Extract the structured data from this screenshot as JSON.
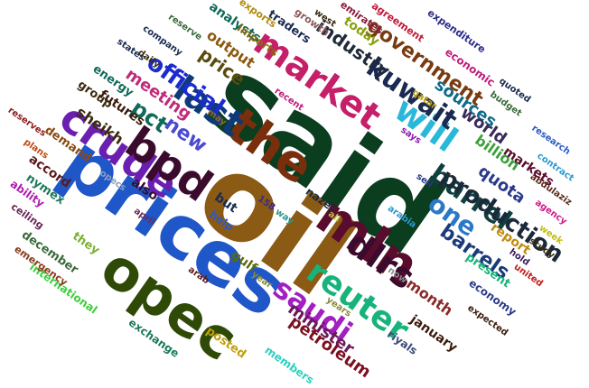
{
  "words": [
    {
      "text": "said",
      "color": "#0b3d1f"
    },
    {
      "text": "oil",
      "color": "#8b5a14"
    },
    {
      "text": "prices",
      "color": "#1f56c8"
    },
    {
      "text": "opec",
      "color": "#2f4a06"
    },
    {
      "text": "mln",
      "color": "#5a0c2c"
    },
    {
      "text": "the",
      "color": "#7a2e0c"
    },
    {
      "text": "crude",
      "color": "#6b1fb0"
    },
    {
      "text": "bpd",
      "color": "#3a0b2c"
    },
    {
      "text": "market",
      "color": "#c51f6a"
    },
    {
      "text": "last",
      "color": "#0f3a7a"
    },
    {
      "text": "will",
      "color": "#2ab8d8"
    },
    {
      "text": "reuter",
      "color": "#17b37a"
    },
    {
      "text": "dlrs",
      "color": "#3a0b2c"
    },
    {
      "text": "kuwait",
      "color": "#1a2a50"
    },
    {
      "text": "saudi",
      "color": "#a21fc0"
    },
    {
      "text": "barrel",
      "color": "#0f4040"
    },
    {
      "text": "one",
      "color": "#2a78c8"
    },
    {
      "text": "production",
      "color": "#1a2a3a"
    },
    {
      "text": "official",
      "color": "#1a2bd0"
    },
    {
      "text": "government",
      "color": "#7a3a10"
    },
    {
      "text": "pct",
      "color": "#0f6a5a"
    },
    {
      "text": "new",
      "color": "#4a4ad0"
    },
    {
      "text": "price",
      "color": "#5a4a10"
    },
    {
      "text": "industry",
      "color": "#1f2a3a"
    },
    {
      "text": "barrels",
      "color": "#1a3a7a"
    },
    {
      "text": "minister",
      "color": "#6a1a5a"
    },
    {
      "text": "petroleum",
      "color": "#7a1020"
    },
    {
      "text": "sources",
      "color": "#0f6a8a"
    },
    {
      "text": "world",
      "color": "#3a2a5a"
    },
    {
      "text": "sheikh",
      "color": "#3a2a10"
    },
    {
      "text": "meeting",
      "color": "#c02a7a"
    },
    {
      "text": "month",
      "color": "#8a2a2a"
    },
    {
      "text": "quota",
      "color": "#2a3a8a"
    },
    {
      "text": "billion",
      "color": "#3aa03a"
    },
    {
      "text": "markets",
      "color": "#5a0c2c"
    },
    {
      "text": "report",
      "color": "#c08a10"
    },
    {
      "text": "january",
      "color": "#3a1a0a"
    },
    {
      "text": "output",
      "color": "#8a5a10"
    },
    {
      "text": "analysts",
      "color": "#0f6a5a"
    },
    {
      "text": "futures",
      "color": "#3a1a0a"
    },
    {
      "text": "today",
      "color": "#8aa010"
    },
    {
      "text": "also",
      "color": "#3a0b2c"
    },
    {
      "text": "gulf",
      "color": "#5a6a10"
    },
    {
      "text": "but",
      "color": "#1a2a50"
    },
    {
      "text": "help",
      "color": "#2a5ac8"
    },
    {
      "text": "nazer",
      "color": "#1a2a3a"
    },
    {
      "text": "present",
      "color": "#17b37a"
    },
    {
      "text": "economy",
      "color": "#2a3a8a"
    },
    {
      "text": "december",
      "color": "#3a6a3a"
    },
    {
      "text": "they",
      "color": "#7ab030"
    },
    {
      "text": "international",
      "color": "#3ad03a"
    },
    {
      "text": "exchange",
      "color": "#1a7a5a"
    },
    {
      "text": "posted",
      "color": "#c0a010"
    },
    {
      "text": "members",
      "color": "#2ad0c0"
    },
    {
      "text": "riyals",
      "color": "#3a4a7a"
    },
    {
      "text": "accord",
      "color": "#5a1a1a"
    },
    {
      "text": "nymex",
      "color": "#1a7a5a"
    },
    {
      "text": "ability",
      "color": "#b01ab0"
    },
    {
      "text": "ceiling",
      "color": "#6a2a5a"
    },
    {
      "text": "emergency",
      "color": "#8a3a1a"
    },
    {
      "text": "demand",
      "color": "#8a4a10"
    },
    {
      "text": "group",
      "color": "#3a2a10"
    },
    {
      "text": "energy",
      "color": "#0f6a5a"
    },
    {
      "text": "traders",
      "color": "#1a2a50"
    },
    {
      "text": "imports",
      "color": "#8a6a10"
    },
    {
      "text": "exports",
      "color": "#b08a10"
    },
    {
      "text": "growth",
      "color": "#8a5a5a"
    },
    {
      "text": "west",
      "color": "#3a2a10"
    },
    {
      "text": "emirates",
      "color": "#8a1a3a"
    },
    {
      "text": "agreement",
      "color": "#c01a3a"
    },
    {
      "text": "expenditure",
      "color": "#2a2a8a"
    },
    {
      "text": "economic",
      "color": "#c01a7a"
    },
    {
      "text": "budget",
      "color": "#3a6a3a"
    },
    {
      "text": "quoted",
      "color": "#1a2a50"
    },
    {
      "text": "research",
      "color": "#2a5ac8"
    },
    {
      "text": "contract",
      "color": "#2a9ad0"
    },
    {
      "text": "abdulaziz",
      "color": "#5a2a1a"
    },
    {
      "text": "agency",
      "color": "#d01a8a"
    },
    {
      "text": "week",
      "color": "#c0c010"
    },
    {
      "text": "study",
      "color": "#3a2a10"
    },
    {
      "text": "hold",
      "color": "#3a1a5a"
    },
    {
      "text": "united",
      "color": "#c01a1a"
    },
    {
      "text": "expected",
      "color": "#3a1a0a"
    },
    {
      "text": "years",
      "color": "#8a8a3a"
    },
    {
      "text": "sell",
      "color": "#2a3a8a"
    },
    {
      "text": "says",
      "color": "#8a1ab0"
    },
    {
      "text": "qatar",
      "color": "#c0a010"
    },
    {
      "text": "arabia",
      "color": "#2a9ad0"
    },
    {
      "text": "now",
      "color": "#8a8a8a"
    },
    {
      "text": "year",
      "color": "#8a8a3a"
    },
    {
      "text": "arab",
      "color": "#5a1a1a"
    },
    {
      "text": "ali",
      "color": "#c0c040"
    },
    {
      "text": "158",
      "color": "#3a2a8a"
    },
    {
      "text": "way",
      "color": "#2a9a8a"
    },
    {
      "text": "april",
      "color": "#6a2a5a"
    },
    {
      "text": "may",
      "color": "#8a6a3a"
    },
    {
      "text": "recent",
      "color": "#c01a7a"
    },
    {
      "text": "plans",
      "color": "#c04a10"
    },
    {
      "text": "reserves",
      "color": "#8a1a1a"
    },
    {
      "text": "opecs",
      "color": "#8aa0c0"
    },
    {
      "text": "states",
      "color": "#1a2a50"
    },
    {
      "text": "company",
      "color": "#1a2a50"
    },
    {
      "text": "reserve",
      "color": "#3a6a3a"
    },
    {
      "text": "daily",
      "color": "#3a2a10"
    }
  ]
}
